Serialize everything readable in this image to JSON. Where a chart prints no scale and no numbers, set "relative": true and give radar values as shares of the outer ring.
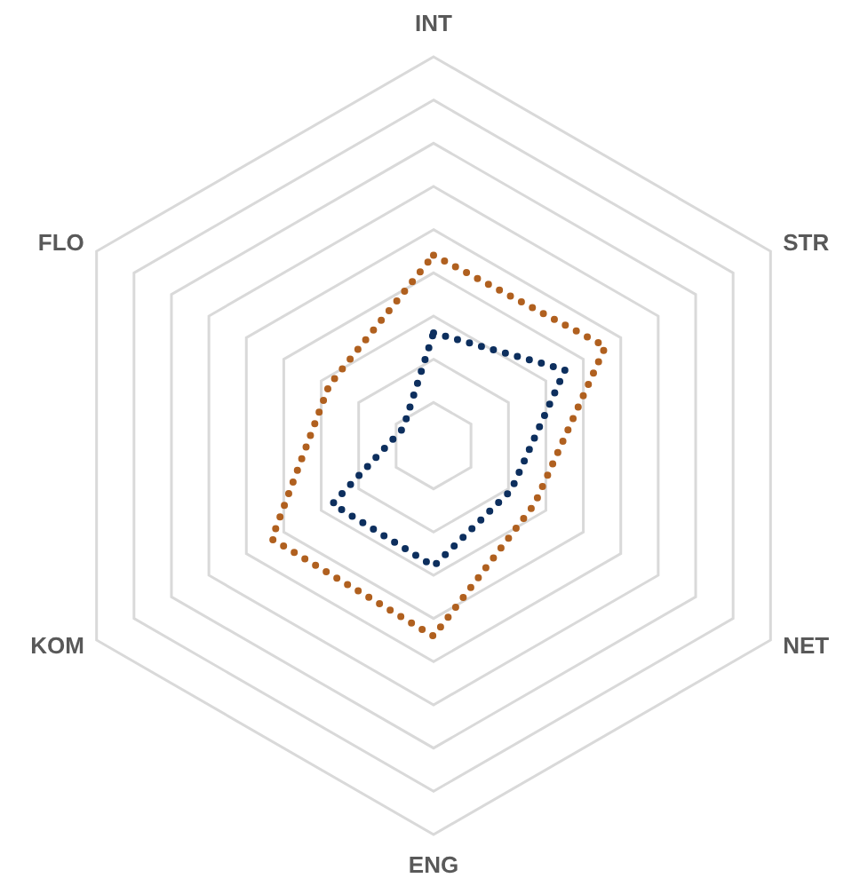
{
  "chart_data": {
    "type": "radar",
    "relative": true,
    "categories": [
      "INT",
      "STR",
      "NET",
      "ENG",
      "KOM",
      "FLO"
    ],
    "grid": true,
    "line_style": "dotted",
    "marker": "none",
    "series": [
      {
        "color": "#b0601f",
        "values": [
          0.49,
          0.51,
          0.3,
          0.49,
          0.48,
          0.31
        ]
      },
      {
        "color": "#0d2f5e",
        "values": [
          0.29,
          0.39,
          0.23,
          0.31,
          0.3,
          0.09
        ]
      }
    ]
  }
}
